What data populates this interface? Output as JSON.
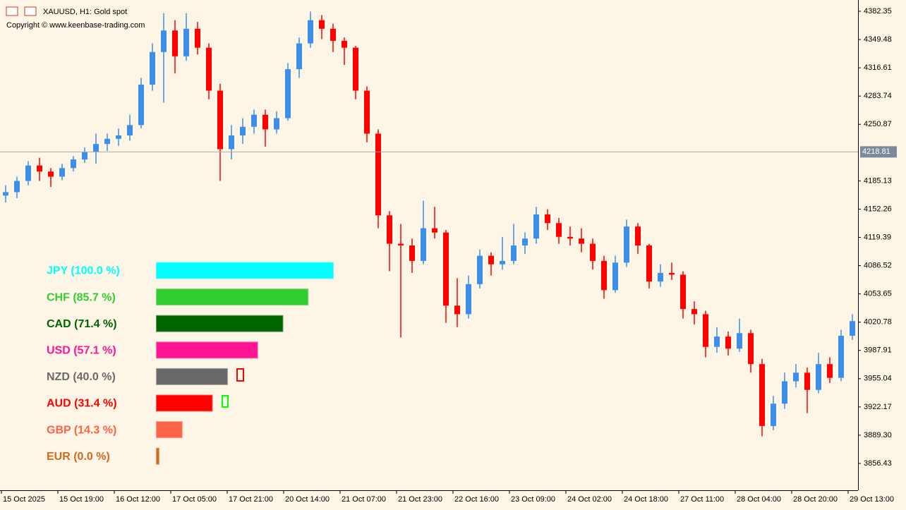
{
  "chart_data": {
    "type": "candlestick",
    "title": "XAUUSD, H1:  Gold spot",
    "subtitle": "Copyright © www.keenbase-trading.com",
    "up_color": "#3d8fe6",
    "down_color": "#ff0000",
    "ylim": [
      3825.25,
      4395.48
    ],
    "yticks": [
      4382.35,
      4349.48,
      4316.61,
      4283.74,
      4250.87,
      4185.13,
      4152.26,
      4119.39,
      4086.52,
      4053.65,
      4020.78,
      3987.91,
      3955.04,
      3922.17,
      {
        "value": 3889.3,
        "label": "3889.30"
      },
      3856.43
    ],
    "current_price": 4218.81,
    "x_labels": [
      "15 Oct 2025",
      "15 Oct 19:00",
      "16 Oct 12:00",
      "17 Oct 05:00",
      "17 Oct 21:00",
      "20 Oct 14:00",
      "21 Oct 07:00",
      "21 Oct 23:00",
      "22 Oct 16:00",
      "23 Oct 09:00",
      "24 Oct 02:00",
      "24 Oct 18:00",
      "27 Oct 11:00",
      "28 Oct 04:00",
      "28 Oct 20:00",
      "29 Oct 13:00"
    ],
    "ohlc": [
      [
        4168,
        4180,
        4160,
        4172
      ],
      [
        4172,
        4190,
        4165,
        4185
      ],
      [
        4185,
        4208,
        4180,
        4203
      ],
      [
        4203,
        4212,
        4185,
        4196
      ],
      [
        4196,
        4200,
        4178,
        4190
      ],
      [
        4190,
        4205,
        4186,
        4200
      ],
      [
        4200,
        4214,
        4196,
        4210
      ],
      [
        4210,
        4224,
        4206,
        4219
      ],
      [
        4219,
        4240,
        4205,
        4228
      ],
      [
        4228,
        4240,
        4220,
        4234
      ],
      [
        4234,
        4246,
        4226,
        4238
      ],
      [
        4238,
        4262,
        4232,
        4250
      ],
      [
        4250,
        4305,
        4246,
        4297
      ],
      [
        4297,
        4345,
        4290,
        4335
      ],
      [
        4335,
        4380,
        4276,
        4360
      ],
      [
        4360,
        4372,
        4310,
        4330
      ],
      [
        4330,
        4380,
        4325,
        4362
      ],
      [
        4362,
        4370,
        4332,
        4340
      ],
      [
        4340,
        4345,
        4280,
        4290
      ],
      [
        4290,
        4298,
        4185,
        4222
      ],
      [
        4222,
        4250,
        4210,
        4238
      ],
      [
        4238,
        4258,
        4228,
        4248
      ],
      [
        4248,
        4268,
        4240,
        4262
      ],
      [
        4262,
        4268,
        4225,
        4245
      ],
      [
        4245,
        4266,
        4240,
        4258
      ],
      [
        4258,
        4322,
        4255,
        4315
      ],
      [
        4315,
        4352,
        4305,
        4345
      ],
      [
        4345,
        4382,
        4340,
        4372
      ],
      [
        4372,
        4378,
        4350,
        4362
      ],
      [
        4362,
        4368,
        4335,
        4348
      ],
      [
        4348,
        4352,
        4320,
        4340
      ],
      [
        4340,
        4342,
        4280,
        4290
      ],
      [
        4290,
        4295,
        4230,
        4240
      ],
      [
        4240,
        4245,
        4130,
        4145
      ],
      [
        4145,
        4150,
        4080,
        4112
      ],
      [
        4112,
        4135,
        4003,
        4110
      ],
      [
        4110,
        4118,
        4078,
        4092
      ],
      [
        4092,
        4162,
        4088,
        4130
      ],
      [
        4130,
        4155,
        4118,
        4125
      ],
      [
        4125,
        4128,
        4020,
        4040
      ],
      [
        4040,
        4072,
        4015,
        4030
      ],
      [
        4030,
        4075,
        4025,
        4065
      ],
      [
        4065,
        4105,
        4060,
        4098
      ],
      [
        4098,
        4102,
        4075,
        4088
      ],
      [
        4088,
        4120,
        4082,
        4092
      ],
      [
        4092,
        4135,
        4088,
        4110
      ],
      [
        4110,
        4125,
        4100,
        4118
      ],
      [
        4118,
        4155,
        4112,
        4146
      ],
      [
        4146,
        4152,
        4128,
        4136
      ],
      [
        4136,
        4142,
        4112,
        4120
      ],
      [
        4120,
        4132,
        4110,
        4118
      ],
      [
        4118,
        4130,
        4102,
        4112
      ],
      [
        4112,
        4118,
        4082,
        4092
      ],
      [
        4092,
        4098,
        4048,
        4058
      ],
      [
        4058,
        4098,
        4055,
        4090
      ],
      [
        4090,
        4140,
        4085,
        4132
      ],
      [
        4132,
        4136,
        4100,
        4110
      ],
      [
        4110,
        4112,
        4060,
        4068
      ],
      [
        4068,
        4088,
        4062,
        4078
      ],
      [
        4078,
        4090,
        4070,
        4076
      ],
      [
        4076,
        4080,
        4025,
        4036
      ],
      [
        4036,
        4045,
        4018,
        4030
      ],
      [
        4030,
        4034,
        3980,
        3992
      ],
      [
        3992,
        4015,
        3985,
        4004
      ],
      [
        4004,
        4010,
        3982,
        3990
      ],
      [
        3990,
        4025,
        3986,
        4008
      ],
      [
        4008,
        4012,
        3962,
        3972
      ],
      [
        3972,
        3978,
        3888,
        3900
      ],
      [
        3900,
        3935,
        3895,
        3926
      ],
      [
        3926,
        3962,
        3920,
        3952
      ],
      [
        3952,
        3972,
        3945,
        3962
      ],
      [
        3962,
        3968,
        3915,
        3942
      ],
      [
        3942,
        3985,
        3938,
        3972
      ],
      [
        3972,
        3980,
        3950,
        3956
      ],
      [
        3956,
        4012,
        3952,
        4005
      ],
      [
        4005,
        4030,
        4000,
        4022
      ]
    ],
    "strength": [
      {
        "label": "JPY (100.0 %)",
        "value": 100,
        "color": "#00ffff"
      },
      {
        "label": "CHF (85.7 %)",
        "value": 85.7,
        "color": "#32cd32"
      },
      {
        "label": "CAD (71.4 %)",
        "value": 71.4,
        "color": "#006400"
      },
      {
        "label": "USD (57.1 %)",
        "value": 57.1,
        "color": "#ff1493"
      },
      {
        "label": "NZD (40.0 %)",
        "value": 40,
        "color": "#696969"
      },
      {
        "label": "AUD (31.4 %)",
        "value": 31.4,
        "color": "#ff0000"
      },
      {
        "label": "GBP (14.3 %)",
        "value": 14.3,
        "color": "#ff6347"
      },
      {
        "label": "EUR (0.0 %)",
        "value": 0,
        "color": "#d2691e"
      }
    ]
  }
}
